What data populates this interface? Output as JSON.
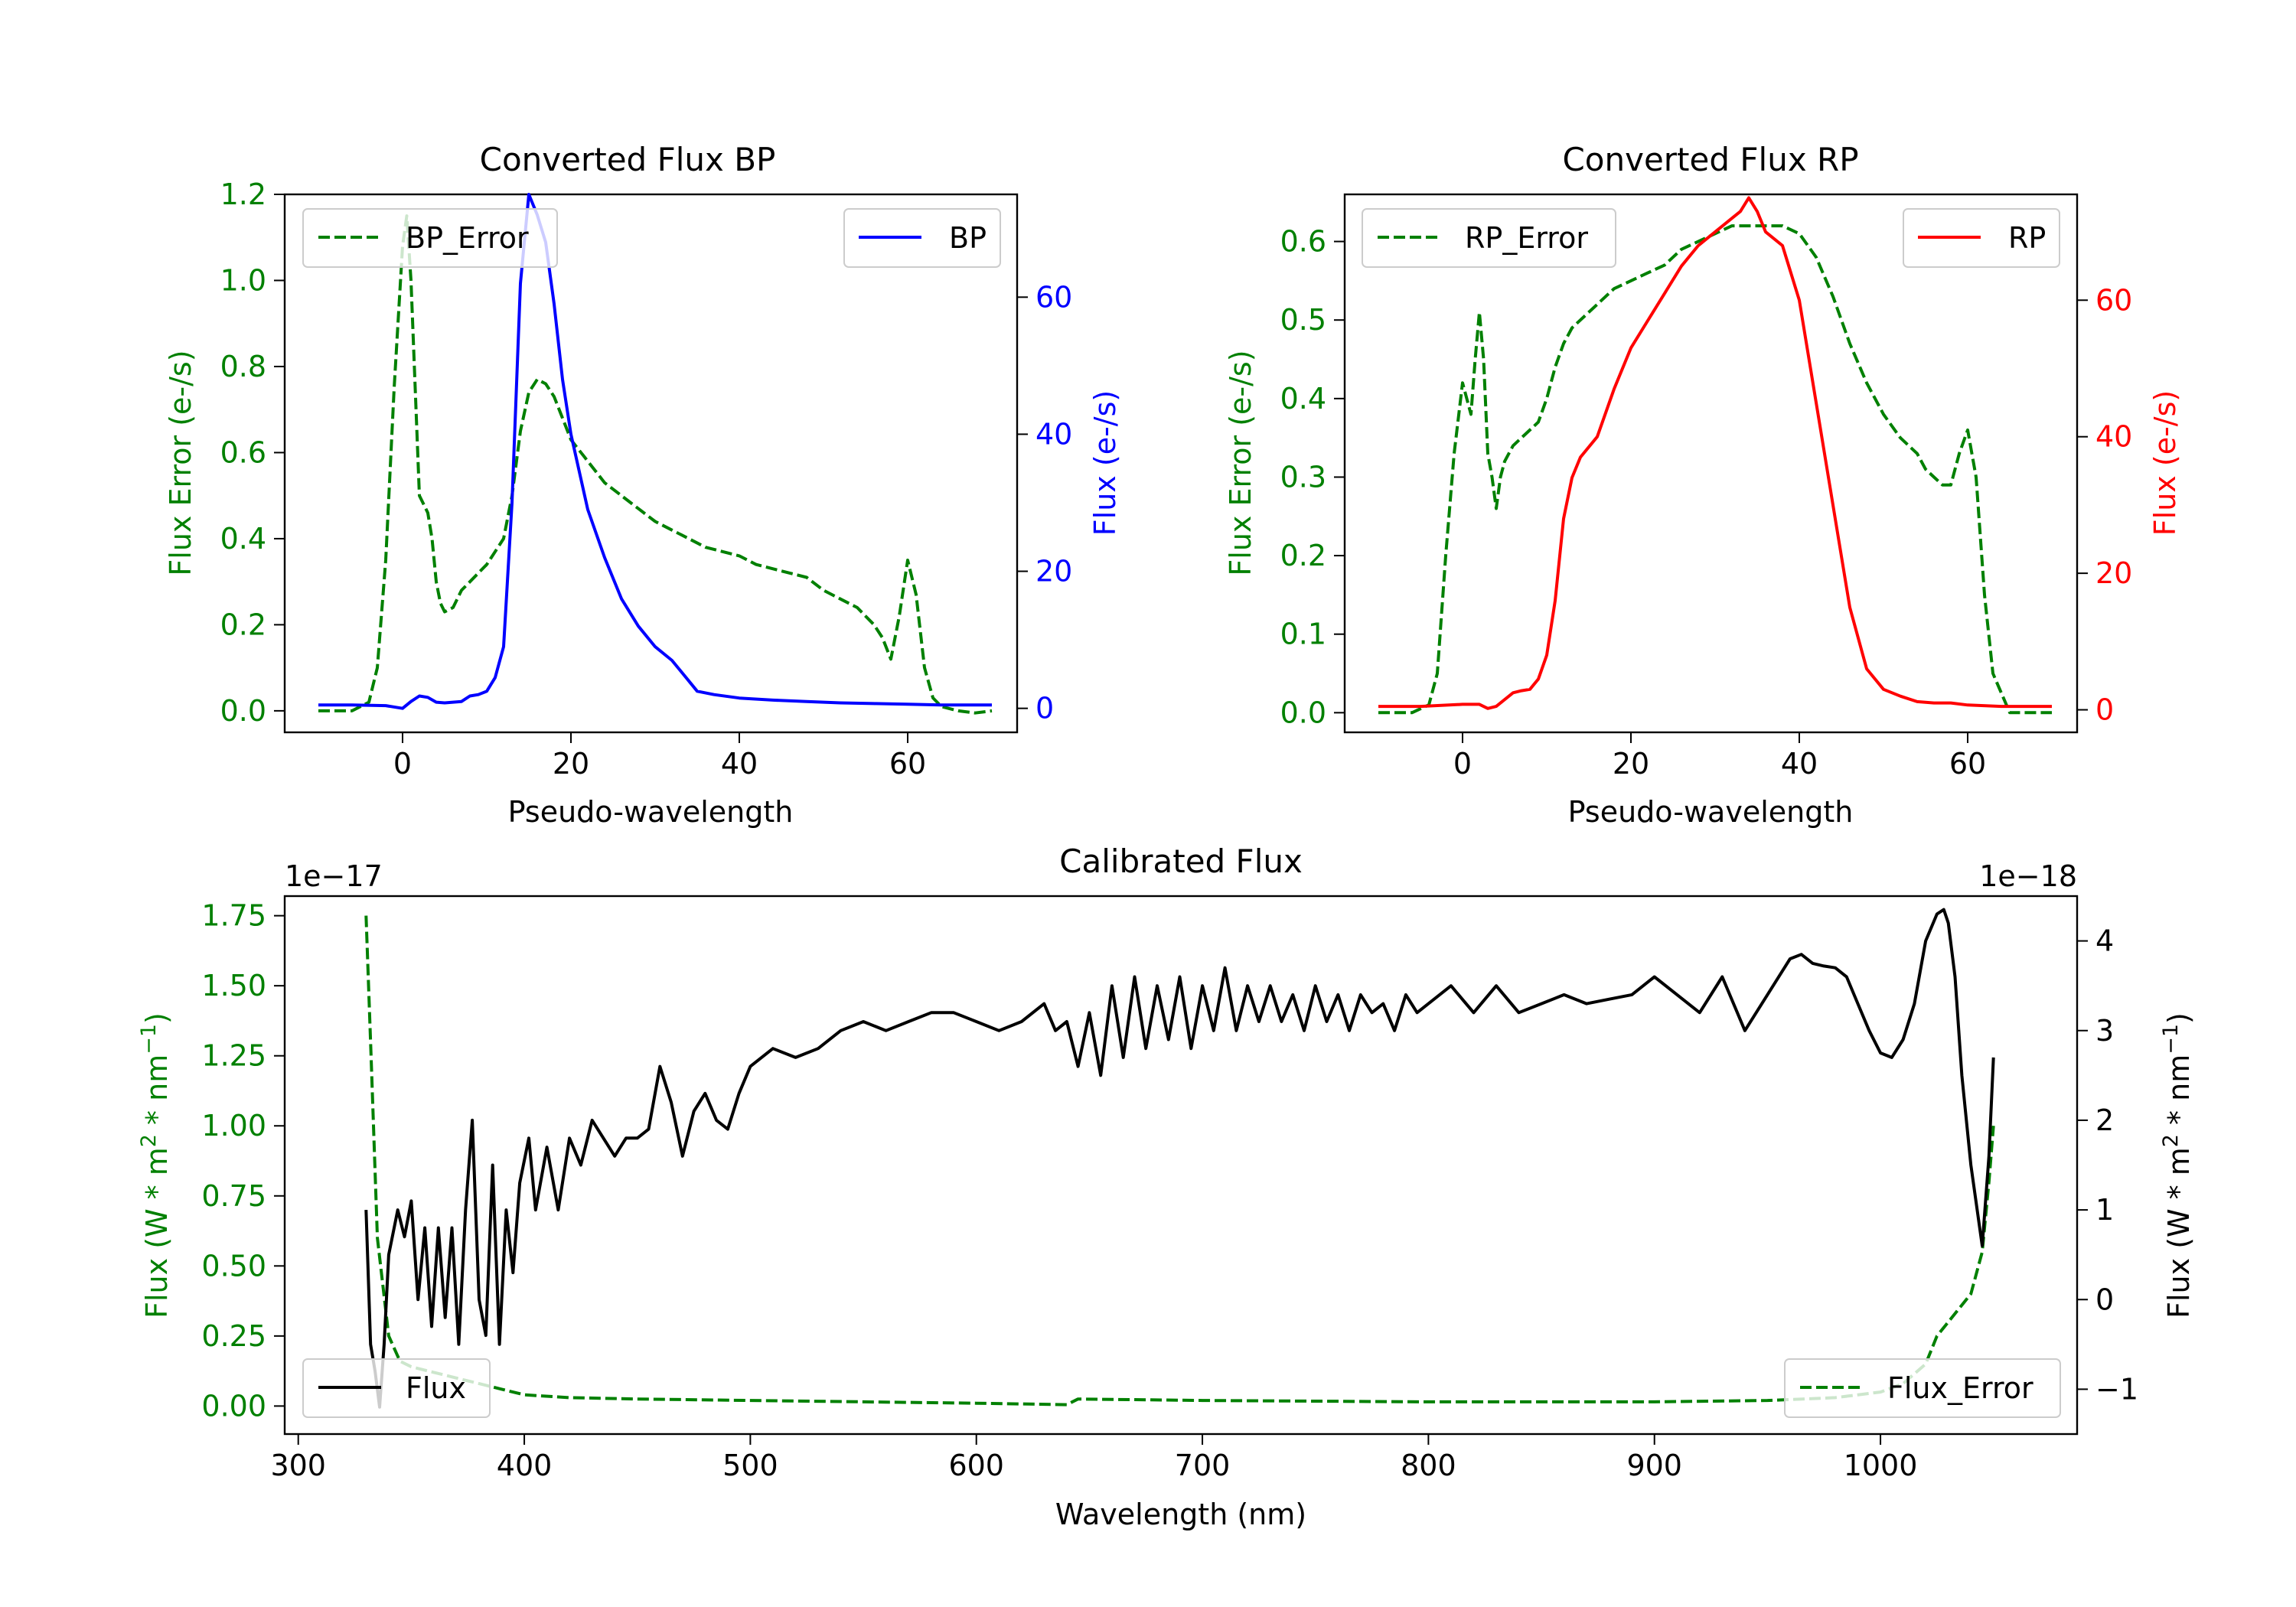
{
  "colors": {
    "green": "#008000",
    "blue": "#0000ff",
    "red": "#ff0000",
    "black": "#000000"
  },
  "chart_data": [
    {
      "id": "bp",
      "type": "line",
      "title": "Converted Flux BP",
      "xlabel": "Pseudo-wavelength",
      "ylabel_left": "Flux Error (e-/s)",
      "ylabel_right": "Flux (e-/s)",
      "xlim": [
        -14,
        73
      ],
      "ylim_left": [
        -0.05,
        1.2
      ],
      "ylim_right": [
        -3.5,
        75
      ],
      "xticks": [
        0,
        20,
        40,
        60
      ],
      "xtick_labels": [
        "0",
        "20",
        "40",
        "60"
      ],
      "yticks_left": [
        0.0,
        0.2,
        0.4,
        0.6,
        0.8,
        1.0,
        1.2
      ],
      "ytick_labels_left": [
        "0.0",
        "0.2",
        "0.4",
        "0.6",
        "0.8",
        "1.0",
        "1.2"
      ],
      "yticks_right": [
        0,
        20,
        40,
        60
      ],
      "ytick_labels_right": [
        "0",
        "20",
        "40",
        "60"
      ],
      "legend_left": "BP_Error",
      "legend_right": "BP",
      "series": [
        {
          "name": "BP_Error",
          "axis": "left",
          "color": "#008000",
          "dash": true,
          "x": [
            -10,
            -6,
            -4,
            -3,
            -2,
            -1,
            0,
            0.5,
            1,
            1.5,
            2,
            2.5,
            3,
            3.5,
            4,
            4.5,
            5,
            6,
            7,
            8,
            9,
            10,
            11,
            12,
            13,
            14,
            15,
            16,
            17,
            18,
            19,
            20,
            22,
            24,
            26,
            28,
            30,
            32,
            34,
            36,
            38,
            40,
            42,
            44,
            46,
            48,
            50,
            52,
            54,
            56,
            57,
            58,
            59,
            60,
            61,
            62,
            63,
            64,
            66,
            68,
            70
          ],
          "y": [
            0.0,
            0.0,
            0.02,
            0.1,
            0.35,
            0.75,
            1.08,
            1.15,
            1.0,
            0.75,
            0.5,
            0.48,
            0.46,
            0.4,
            0.3,
            0.25,
            0.23,
            0.24,
            0.28,
            0.3,
            0.32,
            0.34,
            0.37,
            0.4,
            0.5,
            0.65,
            0.74,
            0.77,
            0.76,
            0.73,
            0.68,
            0.63,
            0.58,
            0.53,
            0.5,
            0.47,
            0.44,
            0.42,
            0.4,
            0.38,
            0.37,
            0.36,
            0.34,
            0.33,
            0.32,
            0.31,
            0.28,
            0.26,
            0.24,
            0.2,
            0.17,
            0.12,
            0.22,
            0.35,
            0.27,
            0.1,
            0.03,
            0.01,
            0.0,
            -0.005,
            0.0
          ]
        },
        {
          "name": "BP",
          "axis": "right",
          "color": "#0000ff",
          "dash": false,
          "x": [
            -10,
            -6,
            -2,
            0,
            1,
            2,
            3,
            4,
            5,
            6,
            7,
            8,
            9,
            10,
            11,
            12,
            13,
            14,
            15,
            16,
            17,
            18,
            19,
            20,
            22,
            24,
            26,
            28,
            30,
            32,
            34,
            35,
            37,
            40,
            44,
            48,
            52,
            56,
            60,
            64,
            70
          ],
          "y": [
            0.5,
            0.5,
            0.4,
            0.0,
            1.0,
            1.8,
            1.6,
            0.9,
            0.8,
            0.9,
            1.0,
            1.8,
            2.0,
            2.5,
            4.5,
            9.0,
            30.0,
            62.0,
            75.0,
            72.0,
            68.0,
            59.0,
            48.0,
            40.0,
            29.0,
            22.0,
            16.0,
            12.0,
            9.0,
            7.0,
            4.0,
            2.5,
            2.0,
            1.5,
            1.2,
            1.0,
            0.8,
            0.7,
            0.6,
            0.5,
            0.5
          ]
        }
      ]
    },
    {
      "id": "rp",
      "type": "line",
      "title": "Converted Flux RP",
      "xlabel": "Pseudo-wavelength",
      "ylabel_left": "Flux Error (e-/s)",
      "ylabel_right": "Flux (e-/s)",
      "xlim": [
        -14,
        73
      ],
      "ylim_left": [
        -0.025,
        0.66
      ],
      "ylim_right": [
        -3.3,
        75.5
      ],
      "xticks": [
        0,
        20,
        40,
        60
      ],
      "xtick_labels": [
        "0",
        "20",
        "40",
        "60"
      ],
      "yticks_left": [
        0.0,
        0.1,
        0.2,
        0.3,
        0.4,
        0.5,
        0.6
      ],
      "ytick_labels_left": [
        "0.0",
        "0.1",
        "0.2",
        "0.3",
        "0.4",
        "0.5",
        "0.6"
      ],
      "yticks_right": [
        0,
        20,
        40,
        60
      ],
      "ytick_labels_right": [
        "0",
        "20",
        "40",
        "60"
      ],
      "legend_left": "RP_Error",
      "legend_right": "RP",
      "series": [
        {
          "name": "RP_Error",
          "axis": "left",
          "color": "#008000",
          "dash": true,
          "x": [
            -10,
            -6,
            -4,
            -3,
            -2,
            -1,
            0,
            1,
            1.5,
            2,
            2.5,
            3,
            3.5,
            4,
            4.5,
            5,
            6,
            7,
            8,
            9,
            10,
            11,
            12,
            13,
            14,
            16,
            18,
            20,
            22,
            24,
            26,
            28,
            30,
            32,
            34,
            36,
            38,
            40,
            42,
            44,
            46,
            48,
            50,
            52,
            54,
            55,
            56,
            57,
            58,
            59,
            60,
            61,
            62,
            63,
            65,
            70
          ],
          "y": [
            0.0,
            0.0,
            0.01,
            0.05,
            0.2,
            0.33,
            0.42,
            0.38,
            0.45,
            0.51,
            0.45,
            0.33,
            0.3,
            0.26,
            0.3,
            0.32,
            0.34,
            0.35,
            0.36,
            0.37,
            0.4,
            0.44,
            0.47,
            0.49,
            0.5,
            0.52,
            0.54,
            0.55,
            0.56,
            0.57,
            0.59,
            0.6,
            0.61,
            0.62,
            0.62,
            0.62,
            0.62,
            0.61,
            0.58,
            0.53,
            0.47,
            0.42,
            0.38,
            0.35,
            0.33,
            0.31,
            0.3,
            0.29,
            0.29,
            0.33,
            0.36,
            0.3,
            0.15,
            0.05,
            0.0,
            0.0
          ]
        },
        {
          "name": "RP",
          "axis": "right",
          "color": "#ff0000",
          "dash": false,
          "x": [
            -10,
            -5,
            0,
            2,
            3,
            4,
            5,
            6,
            7,
            8,
            9,
            10,
            11,
            12,
            13,
            14,
            16,
            18,
            20,
            22,
            24,
            26,
            28,
            30,
            32,
            33,
            34,
            35,
            36,
            38,
            40,
            42,
            44,
            46,
            48,
            50,
            52,
            54,
            56,
            58,
            60,
            64,
            70
          ],
          "y": [
            0.5,
            0.5,
            0.8,
            0.8,
            0.2,
            0.5,
            1.5,
            2.5,
            2.8,
            3.0,
            4.5,
            8.0,
            16.0,
            28.0,
            34.0,
            37.0,
            40.0,
            47.0,
            53.0,
            57.0,
            61.0,
            65.0,
            68.0,
            70.0,
            72.0,
            73.0,
            75.0,
            73.0,
            70.0,
            68.0,
            60.0,
            45.0,
            30.0,
            15.0,
            6.0,
            3.0,
            2.0,
            1.2,
            1.0,
            1.0,
            0.7,
            0.5,
            0.5
          ]
        }
      ]
    },
    {
      "id": "calibrated",
      "type": "line",
      "title": "Calibrated Flux",
      "xlabel": "Wavelength (nm)",
      "ylabel_left": "Flux (W * m",
      "ylabel_left_exp1": "2",
      "ylabel_left_mid": " * nm",
      "ylabel_left_exp2": "−1",
      "ylabel_left_end": ")",
      "ylabel_right": "Flux (W * m",
      "ylabel_right_exp1": "2",
      "ylabel_right_mid": " * nm",
      "ylabel_right_exp2": "−1",
      "ylabel_right_end": ")",
      "offset_left": "1e−17",
      "offset_right": "1e−18",
      "xlim": [
        294,
        1087
      ],
      "ylim_left": [
        -0.1,
        1.82
      ],
      "ylim_right": [
        -1.5,
        4.5
      ],
      "xticks": [
        300,
        400,
        500,
        600,
        700,
        800,
        900,
        1000
      ],
      "xtick_labels": [
        "300",
        "400",
        "500",
        "600",
        "700",
        "800",
        "900",
        "1000"
      ],
      "yticks_left": [
        0.0,
        0.25,
        0.5,
        0.75,
        1.0,
        1.25,
        1.5,
        1.75
      ],
      "ytick_labels_left": [
        "0.00",
        "0.25",
        "0.50",
        "0.75",
        "1.00",
        "1.25",
        "1.50",
        "1.75"
      ],
      "yticks_right": [
        -1,
        0,
        1,
        2,
        3,
        4
      ],
      "ytick_labels_right": [
        "−1",
        "0",
        "1",
        "2",
        "3",
        "4"
      ],
      "legend_left": "Flux",
      "legend_right": "Flux_Error",
      "series": [
        {
          "name": "Flux_Error",
          "axis": "left",
          "color": "#008000",
          "dash": true,
          "x": [
            330,
            332,
            335,
            340,
            345,
            350,
            360,
            370,
            380,
            390,
            400,
            420,
            450,
            500,
            550,
            600,
            640,
            645,
            700,
            800,
            900,
            950,
            980,
            1000,
            1010,
            1020,
            1025,
            1030,
            1035,
            1040,
            1045,
            1048,
            1050
          ],
          "y": [
            1.75,
            1.3,
            0.6,
            0.25,
            0.16,
            0.14,
            0.12,
            0.1,
            0.08,
            0.06,
            0.04,
            0.03,
            0.025,
            0.02,
            0.015,
            0.01,
            0.005,
            0.025,
            0.02,
            0.015,
            0.015,
            0.02,
            0.03,
            0.05,
            0.08,
            0.15,
            0.25,
            0.3,
            0.35,
            0.4,
            0.55,
            0.8,
            1.0
          ]
        },
        {
          "name": "Flux",
          "axis": "right",
          "color": "#000000",
          "dash": false,
          "x": [
            330,
            332,
            334,
            336,
            338,
            340,
            344,
            347,
            350,
            353,
            356,
            359,
            362,
            365,
            368,
            371,
            374,
            377,
            380,
            383,
            386,
            389,
            392,
            395,
            398,
            402,
            405,
            410,
            415,
            420,
            425,
            430,
            435,
            440,
            445,
            450,
            455,
            460,
            465,
            470,
            475,
            480,
            485,
            490,
            495,
            500,
            510,
            520,
            530,
            540,
            550,
            560,
            570,
            580,
            590,
            600,
            610,
            620,
            630,
            635,
            640,
            645,
            650,
            655,
            660,
            665,
            670,
            675,
            680,
            685,
            690,
            695,
            700,
            705,
            710,
            715,
            720,
            725,
            730,
            735,
            740,
            745,
            750,
            755,
            760,
            765,
            770,
            775,
            780,
            785,
            790,
            795,
            800,
            810,
            820,
            830,
            840,
            850,
            860,
            870,
            880,
            890,
            900,
            910,
            920,
            930,
            940,
            950,
            960,
            965,
            970,
            975,
            980,
            985,
            990,
            995,
            1000,
            1005,
            1010,
            1015,
            1020,
            1025,
            1028,
            1030,
            1033,
            1036,
            1040,
            1045,
            1048,
            1050
          ],
          "y": [
            1.0,
            -0.5,
            -0.8,
            -1.2,
            -0.5,
            0.5,
            1.0,
            0.7,
            1.1,
            0.0,
            0.8,
            -0.3,
            0.8,
            -0.2,
            0.8,
            -0.5,
            1.0,
            2.0,
            0.0,
            -0.4,
            1.5,
            -0.5,
            1.0,
            0.3,
            1.3,
            1.8,
            1.0,
            1.7,
            1.0,
            1.8,
            1.5,
            2.0,
            1.8,
            1.6,
            1.8,
            1.8,
            1.9,
            2.6,
            2.2,
            1.6,
            2.1,
            2.3,
            2.0,
            1.9,
            2.3,
            2.6,
            2.8,
            2.7,
            2.8,
            3.0,
            3.1,
            3.0,
            3.1,
            3.2,
            3.2,
            3.1,
            3.0,
            3.1,
            3.3,
            3.0,
            3.1,
            2.6,
            3.2,
            2.5,
            3.5,
            2.7,
            3.6,
            2.8,
            3.5,
            2.9,
            3.6,
            2.8,
            3.5,
            3.0,
            3.7,
            3.0,
            3.5,
            3.1,
            3.5,
            3.1,
            3.4,
            3.0,
            3.5,
            3.1,
            3.4,
            3.0,
            3.4,
            3.2,
            3.3,
            3.0,
            3.4,
            3.2,
            3.3,
            3.5,
            3.2,
            3.5,
            3.2,
            3.3,
            3.4,
            3.3,
            3.35,
            3.4,
            3.6,
            3.4,
            3.2,
            3.6,
            3.0,
            3.4,
            3.8,
            3.85,
            3.75,
            3.72,
            3.7,
            3.6,
            3.3,
            3.0,
            2.75,
            2.7,
            2.9,
            3.3,
            4.0,
            4.3,
            4.35,
            4.2,
            3.6,
            2.5,
            1.5,
            0.6,
            1.6,
            2.7
          ]
        }
      ]
    }
  ]
}
